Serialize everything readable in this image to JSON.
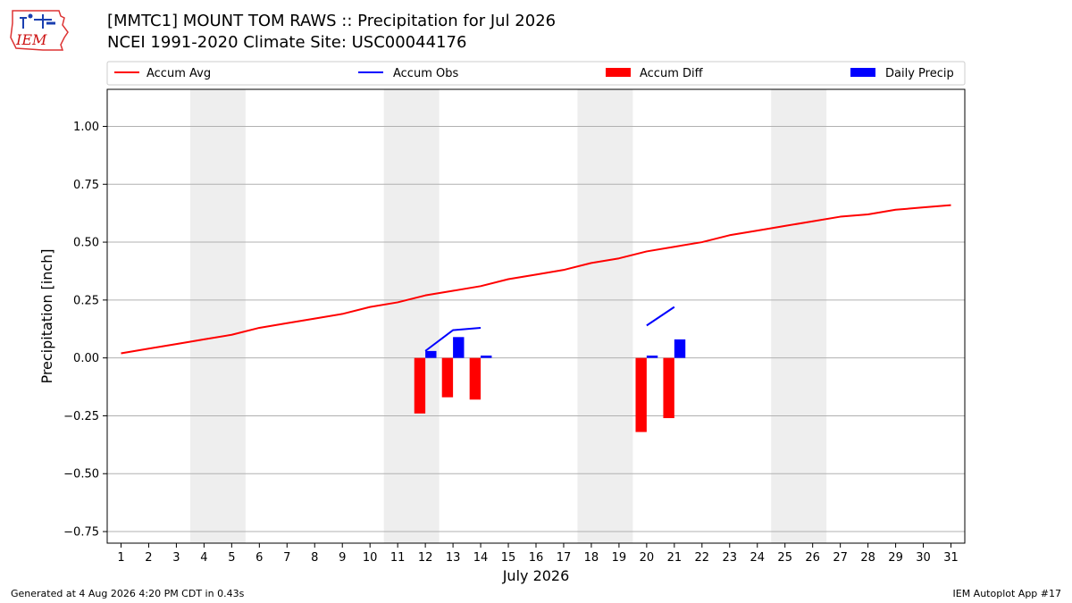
{
  "logo": {
    "text": "IEM"
  },
  "header": {
    "title_line1": "[MMTC1] MOUNT TOM RAWS :: Precipitation for Jul 2026",
    "title_line2": "NCEI 1991-2020 Climate Site: USC00044176"
  },
  "footer": {
    "generated": "Generated at 4 Aug 2026 4:20 PM CDT in 0.43s",
    "app": "IEM Autoplot App #17"
  },
  "colors": {
    "accum_avg": "#ff0000",
    "accum_obs": "#0000ff",
    "accum_diff": "#ff0000",
    "daily_precip": "#0000ff",
    "weekend_shade": "#eeeeee",
    "grid": "#b0b0b0"
  },
  "chart_data": {
    "type": "bar",
    "xlabel": "July 2026",
    "ylabel": "Precipitation [inch]",
    "xlim": [
      0.5,
      31.5
    ],
    "ylim": [
      -0.8,
      1.16
    ],
    "yticks": [
      -0.75,
      -0.5,
      -0.25,
      0.0,
      0.25,
      0.5,
      0.75,
      1.0
    ],
    "ytick_labels": [
      "−0.75",
      "−0.50",
      "−0.25",
      "0.00",
      "0.25",
      "0.50",
      "0.75",
      "1.00"
    ],
    "x": [
      1,
      2,
      3,
      4,
      5,
      6,
      7,
      8,
      9,
      10,
      11,
      12,
      13,
      14,
      15,
      16,
      17,
      18,
      19,
      20,
      21,
      22,
      23,
      24,
      25,
      26,
      27,
      28,
      29,
      30,
      31
    ],
    "grid": "horizontal",
    "legend": {
      "position": "top",
      "entries": [
        {
          "label": "Accum Avg",
          "kind": "line",
          "color": "#ff0000"
        },
        {
          "label": "Accum Obs",
          "kind": "line",
          "color": "#0000ff"
        },
        {
          "label": "Accum Diff",
          "kind": "bar",
          "color": "#ff0000"
        },
        {
          "label": "Daily Precip",
          "kind": "bar",
          "color": "#0000ff"
        }
      ]
    },
    "weekend_ranges": [
      [
        3.5,
        5.5
      ],
      [
        10.5,
        12.5
      ],
      [
        17.5,
        19.5
      ],
      [
        24.5,
        26.5
      ]
    ],
    "series": [
      {
        "name": "Accum Avg",
        "kind": "line",
        "x": [
          1,
          2,
          3,
          4,
          5,
          6,
          7,
          8,
          9,
          10,
          11,
          12,
          13,
          14,
          15,
          16,
          17,
          18,
          19,
          20,
          21,
          22,
          23,
          24,
          25,
          26,
          27,
          28,
          29,
          30,
          31
        ],
        "values": [
          0.02,
          0.04,
          0.06,
          0.08,
          0.1,
          0.13,
          0.15,
          0.17,
          0.19,
          0.22,
          0.24,
          0.27,
          0.29,
          0.31,
          0.34,
          0.36,
          0.38,
          0.41,
          0.43,
          0.46,
          0.48,
          0.5,
          0.53,
          0.55,
          0.57,
          0.59,
          0.61,
          0.62,
          0.64,
          0.65,
          0.66
        ]
      },
      {
        "name": "Accum Obs",
        "kind": "line",
        "segments": [
          {
            "x": [
              12,
              13,
              14
            ],
            "values": [
              0.03,
              0.12,
              0.13
            ]
          },
          {
            "x": [
              20,
              21
            ],
            "values": [
              0.14,
              0.22
            ]
          }
        ]
      },
      {
        "name": "Accum Diff",
        "kind": "bar",
        "x": [
          12,
          13,
          14,
          20,
          21
        ],
        "values": [
          -0.24,
          -0.17,
          -0.18,
          -0.32,
          -0.26
        ]
      },
      {
        "name": "Daily Precip",
        "kind": "bar",
        "x": [
          12,
          13,
          14,
          20,
          21
        ],
        "values": [
          0.03,
          0.09,
          0.01,
          0.01,
          0.08
        ]
      }
    ]
  }
}
